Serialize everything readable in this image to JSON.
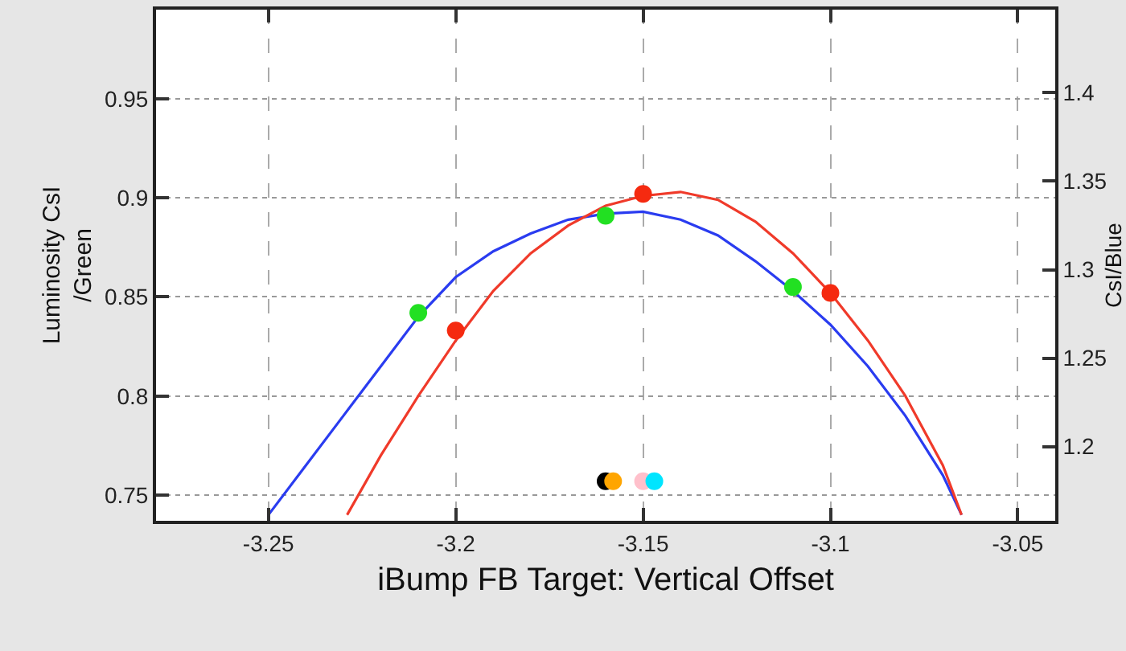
{
  "chart_data": {
    "type": "line",
    "xlabel": "iBump FB Target: Vertical Offset",
    "ylabel": "Luminosity CsI\n/Green",
    "y2label": "CsI/Blue",
    "xlim": [
      -3.28,
      -3.04
    ],
    "xticks": [
      -3.25,
      -3.2,
      -3.15,
      -3.1,
      -3.05
    ],
    "ylim": [
      0.737,
      0.995
    ],
    "yticks": [
      0.75,
      0.8,
      0.85,
      0.9,
      0.95
    ],
    "y2lim": [
      1.158,
      1.447
    ],
    "y2ticks": [
      1.2,
      1.25,
      1.3,
      1.35,
      1.4
    ],
    "grid": true,
    "line_style": "solid",
    "series": [
      {
        "type": "line",
        "marker": "none",
        "color": "#2a3cf0",
        "x": [
          -3.25,
          -3.24,
          -3.23,
          -3.22,
          -3.21,
          -3.2,
          -3.19,
          -3.18,
          -3.17,
          -3.16,
          -3.15,
          -3.14,
          -3.13,
          -3.12,
          -3.11,
          -3.1,
          -3.09,
          -3.08,
          -3.07,
          -3.065
        ],
        "values": [
          0.74,
          0.765,
          0.79,
          0.815,
          0.84,
          0.86,
          0.873,
          0.882,
          0.889,
          0.892,
          0.893,
          0.889,
          0.881,
          0.868,
          0.853,
          0.836,
          0.815,
          0.79,
          0.76,
          0.74
        ]
      },
      {
        "type": "line",
        "marker": "none",
        "color": "#f03a2a",
        "x": [
          -3.229,
          -3.22,
          -3.21,
          -3.2,
          -3.19,
          -3.18,
          -3.17,
          -3.16,
          -3.15,
          -3.14,
          -3.13,
          -3.12,
          -3.11,
          -3.1,
          -3.09,
          -3.08,
          -3.07,
          -3.065
        ],
        "values": [
          0.74,
          0.77,
          0.8,
          0.828,
          0.853,
          0.872,
          0.886,
          0.896,
          0.901,
          0.903,
          0.899,
          0.888,
          0.872,
          0.852,
          0.828,
          0.8,
          0.765,
          0.74
        ]
      },
      {
        "type": "scatter",
        "marker": "circle",
        "color": "#22e022",
        "x": [
          -3.21,
          -3.16,
          -3.11
        ],
        "values": [
          0.842,
          0.891,
          0.855
        ]
      },
      {
        "type": "scatter",
        "marker": "circle",
        "color": "#f52a10",
        "x": [
          -3.2,
          -3.15,
          -3.1
        ],
        "values": [
          0.833,
          0.902,
          0.852
        ]
      },
      {
        "type": "scatter",
        "marker": "circle",
        "color": "#000000",
        "x": [
          -3.16
        ],
        "values": [
          0.757
        ]
      },
      {
        "type": "scatter",
        "marker": "circle",
        "color": "#ffa500",
        "x": [
          -3.158
        ],
        "values": [
          0.757
        ]
      },
      {
        "type": "scatter",
        "marker": "circle",
        "color": "#ffc0cb",
        "x": [
          -3.15
        ],
        "values": [
          0.757
        ]
      },
      {
        "type": "scatter",
        "marker": "circle",
        "color": "#00e5ff",
        "x": [
          -3.147
        ],
        "values": [
          0.757
        ]
      }
    ]
  }
}
